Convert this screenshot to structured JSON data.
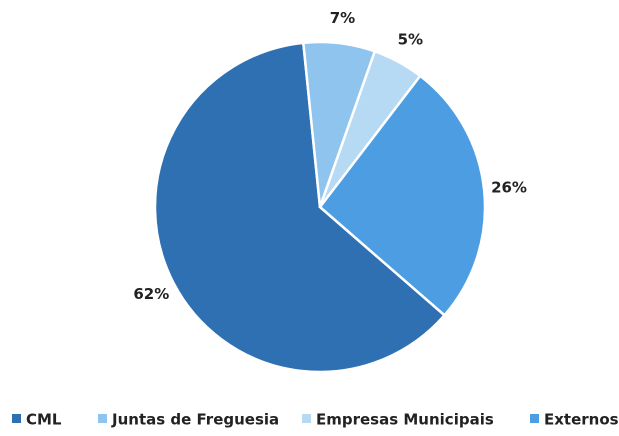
{
  "chart_data": {
    "type": "pie",
    "categories": [
      "CML",
      "Juntas de Freguesia",
      "Empresas Municipais",
      "Externos"
    ],
    "values": [
      62,
      7,
      5,
      26
    ],
    "value_labels": [
      "62%",
      "7%",
      "5%",
      "26%"
    ],
    "colors": [
      "#2f70b3",
      "#8ec4ee",
      "#b6d9f4",
      "#4d9de2"
    ],
    "legend": "bottom"
  }
}
